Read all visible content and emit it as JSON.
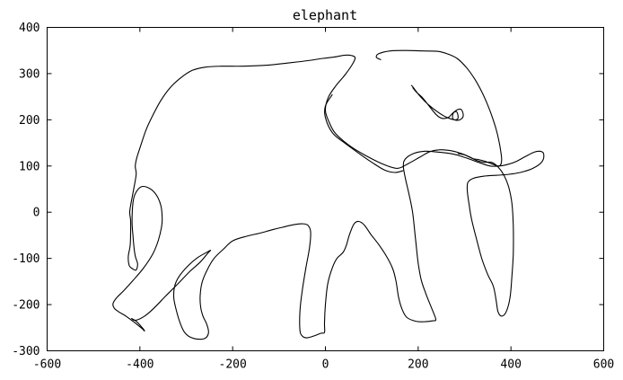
{
  "chart_data": {
    "type": "line",
    "title": "elephant",
    "xlabel": "",
    "ylabel": "",
    "xlim": [
      -600,
      600
    ],
    "ylim": [
      -300,
      400
    ],
    "xticks": [
      -600,
      -400,
      -200,
      0,
      200,
      400,
      600
    ],
    "yticks": [
      -300,
      -200,
      -100,
      0,
      100,
      200,
      300,
      400
    ],
    "xtick_labels": [
      "-600",
      "-400",
      "-200",
      "0",
      "200",
      "400",
      "600"
    ],
    "ytick_labels": [
      "-300",
      "-200",
      "-100",
      "0",
      "100",
      "200",
      "300",
      "400"
    ],
    "grid": false,
    "legend": "none",
    "line_color": "#000000",
    "series": [
      {
        "values": [
          [
            -247,
            -82
          ],
          [
            -275,
            -98
          ],
          [
            -298,
            -118
          ],
          [
            -316,
            -140
          ],
          [
            -325,
            -160
          ],
          [
            -327,
            -185
          ],
          [
            -322,
            -210
          ],
          [
            -315,
            -235
          ],
          [
            -305,
            -258
          ],
          [
            -292,
            -270
          ],
          [
            -272,
            -275
          ],
          [
            -258,
            -272
          ],
          [
            -252,
            -260
          ],
          [
            -256,
            -242
          ],
          [
            -264,
            -225
          ],
          [
            -269,
            -205
          ],
          [
            -270,
            -180
          ],
          [
            -266,
            -152
          ],
          [
            -255,
            -125
          ],
          [
            -240,
            -100
          ],
          [
            -220,
            -80
          ],
          [
            -200,
            -62
          ],
          [
            -170,
            -52
          ],
          [
            -140,
            -45
          ],
          [
            -115,
            -38
          ],
          [
            -90,
            -32
          ],
          [
            -68,
            -27
          ],
          [
            -50,
            -25
          ],
          [
            -38,
            -28
          ],
          [
            -32,
            -42
          ],
          [
            -34,
            -75
          ],
          [
            -42,
            -120
          ],
          [
            -50,
            -170
          ],
          [
            -55,
            -215
          ],
          [
            -55,
            -255
          ],
          [
            -50,
            -268
          ],
          [
            -40,
            -272
          ],
          [
            -25,
            -268
          ],
          [
            -10,
            -262
          ],
          [
            -2,
            -260
          ],
          [
            -2,
            -240
          ],
          [
            0,
            -200
          ],
          [
            5,
            -155
          ],
          [
            15,
            -120
          ],
          [
            25,
            -100
          ],
          [
            38,
            -87
          ],
          [
            45,
            -72
          ],
          [
            52,
            -48
          ],
          [
            62,
            -25
          ],
          [
            72,
            -20
          ],
          [
            84,
            -28
          ],
          [
            98,
            -48
          ],
          [
            115,
            -70
          ],
          [
            132,
            -96
          ],
          [
            145,
            -122
          ],
          [
            152,
            -148
          ],
          [
            158,
            -185
          ],
          [
            166,
            -212
          ],
          [
            176,
            -228
          ],
          [
            195,
            -236
          ],
          [
            215,
            -237
          ],
          [
            232,
            -235
          ],
          [
            238,
            -232
          ],
          [
            230,
            -210
          ],
          [
            218,
            -180
          ],
          [
            207,
            -148
          ],
          [
            200,
            -110
          ],
          [
            194,
            -55
          ],
          [
            188,
            0
          ],
          [
            180,
            40
          ],
          [
            172,
            75
          ],
          [
            168,
            100
          ],
          [
            172,
            115
          ],
          [
            190,
            127
          ],
          [
            215,
            132
          ],
          [
            245,
            130
          ],
          [
            275,
            126
          ],
          [
            302,
            118
          ],
          [
            330,
            108
          ],
          [
            355,
            100
          ],
          [
            375,
            100
          ],
          [
            392,
            103
          ],
          [
            412,
            110
          ],
          [
            432,
            121
          ],
          [
            450,
            130
          ],
          [
            462,
            132
          ],
          [
            470,
            128
          ],
          [
            470,
            115
          ],
          [
            462,
            104
          ],
          [
            443,
            93
          ],
          [
            420,
            86
          ],
          [
            396,
            82
          ],
          [
            370,
            80
          ],
          [
            342,
            78
          ],
          [
            318,
            73
          ],
          [
            307,
            64
          ],
          [
            306,
            45
          ],
          [
            310,
            15
          ],
          [
            315,
            -15
          ],
          [
            325,
            -55
          ],
          [
            337,
            -100
          ],
          [
            350,
            -135
          ],
          [
            362,
            -160
          ],
          [
            368,
            -190
          ],
          [
            372,
            -215
          ],
          [
            380,
            -225
          ],
          [
            390,
            -215
          ],
          [
            398,
            -185
          ],
          [
            402,
            -140
          ],
          [
            405,
            -90
          ],
          [
            405,
            -30
          ],
          [
            402,
            20
          ],
          [
            395,
            55
          ],
          [
            385,
            80
          ],
          [
            372,
            98
          ],
          [
            358,
            108
          ],
          [
            343,
            108
          ],
          [
            326,
            112
          ],
          [
            310,
            120
          ],
          [
            296,
            126
          ],
          [
            280,
            131
          ],
          [
            265,
            134
          ],
          [
            245,
            135
          ],
          [
            225,
            131
          ],
          [
            205,
            120
          ],
          [
            180,
            106
          ],
          [
            155,
            95
          ],
          [
            122,
            105
          ],
          [
            88,
            122
          ],
          [
            55,
            142
          ],
          [
            22,
            170
          ],
          [
            8,
            195
          ],
          [
            0,
            220
          ],
          [
            6,
            248
          ],
          [
            22,
            273
          ],
          [
            42,
            297
          ],
          [
            58,
            320
          ],
          [
            64,
            334
          ],
          [
            57,
            339
          ],
          [
            42,
            340
          ],
          [
            20,
            336
          ],
          [
            -5,
            333
          ],
          [
            -38,
            328
          ],
          [
            -80,
            323
          ],
          [
            -130,
            318
          ],
          [
            -180,
            316
          ],
          [
            -225,
            316
          ],
          [
            -258,
            314
          ],
          [
            -287,
            307
          ],
          [
            -313,
            290
          ],
          [
            -336,
            268
          ],
          [
            -356,
            240
          ],
          [
            -372,
            210
          ],
          [
            -386,
            180
          ],
          [
            -397,
            148
          ],
          [
            -406,
            120
          ],
          [
            -410,
            100
          ],
          [
            -408,
            82
          ],
          [
            -413,
            52
          ],
          [
            -419,
            20
          ],
          [
            -422,
            0
          ],
          [
            -420,
            -18
          ],
          [
            -420,
            -45
          ],
          [
            -421,
            -72
          ],
          [
            -425,
            -96
          ],
          [
            -423,
            -115
          ],
          [
            -415,
            -123
          ],
          [
            -408,
            -125
          ],
          [
            -405,
            -112
          ],
          [
            -410,
            -95
          ],
          [
            -413,
            -73
          ],
          [
            -415,
            -50
          ],
          [
            -417,
            -20
          ],
          [
            -415,
            20
          ],
          [
            -410,
            40
          ],
          [
            -397,
            55
          ],
          [
            -380,
            52
          ],
          [
            -365,
            38
          ],
          [
            -355,
            15
          ],
          [
            -352,
            -10
          ],
          [
            -353,
            -30
          ],
          [
            -360,
            -60
          ],
          [
            -372,
            -90
          ],
          [
            -393,
            -122
          ],
          [
            -415,
            -148
          ],
          [
            -435,
            -170
          ],
          [
            -450,
            -185
          ],
          [
            -458,
            -198
          ],
          [
            -455,
            -208
          ],
          [
            -445,
            -216
          ],
          [
            -430,
            -225
          ],
          [
            -410,
            -240
          ],
          [
            -395,
            -252
          ],
          [
            -390,
            -257
          ],
          [
            -395,
            -250
          ],
          [
            -408,
            -236
          ],
          [
            -418,
            -230
          ],
          [
            -410,
            -234
          ],
          [
            -390,
            -225
          ],
          [
            -370,
            -208
          ],
          [
            -345,
            -182
          ],
          [
            -318,
            -155
          ],
          [
            -292,
            -128
          ],
          [
            -270,
            -108
          ],
          [
            -253,
            -88
          ],
          [
            -247,
            -82
          ]
        ]
      },
      {
        "values": [
          [
            185,
            275
          ],
          [
            188,
            272
          ],
          [
            193,
            265
          ],
          [
            205,
            250
          ],
          [
            223,
            232
          ],
          [
            242,
            217
          ],
          [
            258,
            207
          ],
          [
            270,
            202
          ],
          [
            280,
            200
          ],
          [
            284,
            201
          ],
          [
            286,
            204
          ],
          [
            285,
            213
          ],
          [
            282,
            218
          ],
          [
            276,
            215
          ],
          [
            274,
            208
          ],
          [
            275,
            202
          ],
          [
            282,
            199
          ],
          [
            290,
            200
          ],
          [
            296,
            205
          ],
          [
            297,
            212
          ],
          [
            293,
            222
          ],
          [
            285,
            222
          ],
          [
            274,
            214
          ],
          [
            265,
            205
          ],
          [
            252,
            203
          ],
          [
            240,
            210
          ],
          [
            225,
            228
          ],
          [
            210,
            247
          ],
          [
            196,
            260
          ],
          [
            188,
            270
          ]
        ]
      },
      {
        "values": [
          [
            168,
            90
          ],
          [
            150,
            86
          ],
          [
            128,
            91
          ],
          [
            100,
            108
          ],
          [
            70,
            129
          ],
          [
            40,
            151
          ],
          [
            15,
            172
          ],
          [
            0,
            205
          ],
          [
            0,
            230
          ],
          [
            15,
            255
          ]
        ]
      },
      {
        "values": [
          [
            120,
            330
          ],
          [
            110,
            335
          ],
          [
            115,
            343
          ],
          [
            140,
            349
          ],
          [
            175,
            350
          ],
          [
            210,
            349
          ],
          [
            243,
            348
          ],
          [
            265,
            342
          ],
          [
            285,
            332
          ],
          [
            305,
            312
          ],
          [
            322,
            288
          ],
          [
            338,
            259
          ],
          [
            350,
            232
          ],
          [
            360,
            205
          ],
          [
            368,
            180
          ],
          [
            374,
            155
          ],
          [
            378,
            132
          ],
          [
            380,
            115
          ],
          [
            378,
            103
          ],
          [
            372,
            100
          ],
          [
            360,
            104
          ],
          [
            345,
            110
          ],
          [
            330,
            114
          ],
          [
            318,
            116
          ],
          [
            300,
            124
          ],
          [
            285,
            127
          ]
        ]
      }
    ]
  }
}
